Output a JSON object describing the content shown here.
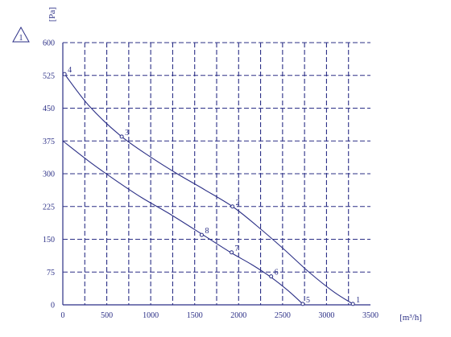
{
  "chart_data": {
    "type": "line",
    "title": "",
    "xlabel": "[m³/h]",
    "ylabel": "[Pa]",
    "badge": "1",
    "xlim": [
      0,
      3500
    ],
    "ylim": [
      0,
      600
    ],
    "xticks": [
      0,
      500,
      1000,
      1500,
      2000,
      2500,
      3000,
      3500
    ],
    "yticks": [
      0,
      75,
      150,
      225,
      300,
      375,
      450,
      525,
      600
    ],
    "grid": true,
    "grid_style": "dashed",
    "colors": {
      "line": "#2b2f86",
      "grid": "#2b2f86",
      "axis": "#2b2f86"
    },
    "series": [
      {
        "x": [
          20,
          300,
          650,
          1000,
          1300,
          1600,
          1930,
          2200,
          2500,
          2800,
          3080,
          3300
        ],
        "y": [
          528,
          455,
          388,
          338,
          300,
          265,
          225,
          182,
          130,
          75,
          30,
          2
        ]
      },
      {
        "x": [
          0,
          300,
          600,
          900,
          1200,
          1580,
          1900,
          2150,
          2370,
          2560,
          2730
        ],
        "y": [
          375,
          328,
          285,
          245,
          210,
          162,
          121,
          92,
          63,
          33,
          2
        ]
      }
    ],
    "points": [
      {
        "label": "1",
        "x": 3300,
        "y": 2
      },
      {
        "label": "2",
        "x": 1930,
        "y": 225
      },
      {
        "label": "3",
        "x": 670,
        "y": 385
      },
      {
        "label": "4",
        "x": 20,
        "y": 528
      },
      {
        "label": "5",
        "x": 2730,
        "y": 2
      },
      {
        "label": "6",
        "x": 2370,
        "y": 65
      },
      {
        "label": "7",
        "x": 1920,
        "y": 120
      },
      {
        "label": "8",
        "x": 1580,
        "y": 160
      }
    ]
  }
}
